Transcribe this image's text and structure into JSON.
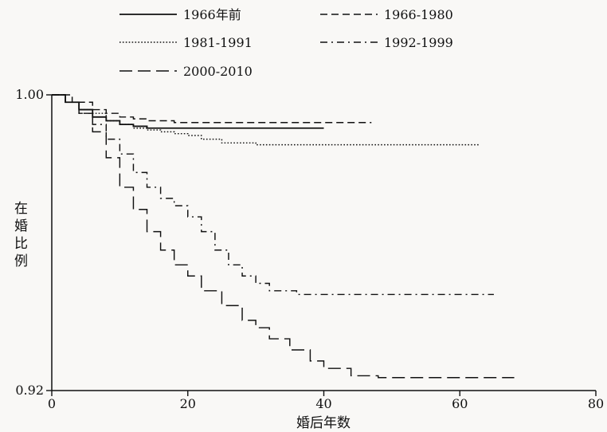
{
  "chart_data": {
    "type": "line",
    "title": "",
    "xlabel": "婚后年数",
    "ylabel": "在婚比例",
    "xlim": [
      0,
      80
    ],
    "ylim": [
      0.92,
      1.0
    ],
    "x_ticks": [
      0,
      20,
      40,
      60,
      80
    ],
    "x_tick_labels": [
      "0",
      "20",
      "40",
      "60",
      "80"
    ],
    "y_ticks": [
      0.92,
      1.0
    ],
    "y_tick_labels": [
      "0.92",
      "1.00"
    ],
    "grid": false,
    "legend_position": "top",
    "series": [
      {
        "name": "1966年前",
        "style": "solid",
        "points": [
          [
            0,
            1.0
          ],
          [
            2,
            0.998
          ],
          [
            4,
            0.996
          ],
          [
            6,
            0.994
          ],
          [
            8,
            0.993
          ],
          [
            10,
            0.992
          ],
          [
            12,
            0.9915
          ],
          [
            14,
            0.991
          ],
          [
            40,
            0.991
          ]
        ]
      },
      {
        "name": "1966-1980",
        "style": "dashed",
        "points": [
          [
            0,
            1.0
          ],
          [
            3,
            0.998
          ],
          [
            6,
            0.996
          ],
          [
            8,
            0.995
          ],
          [
            10,
            0.994
          ],
          [
            12,
            0.9935
          ],
          [
            14,
            0.993
          ],
          [
            16,
            0.993
          ],
          [
            18,
            0.9925
          ],
          [
            20,
            0.9925
          ],
          [
            30,
            0.9925
          ],
          [
            40,
            0.9925
          ],
          [
            47,
            0.9925
          ]
        ]
      },
      {
        "name": "1981-1991",
        "style": "dotted",
        "points": [
          [
            0,
            1.0
          ],
          [
            2,
            0.998
          ],
          [
            4,
            0.996
          ],
          [
            6,
            0.995
          ],
          [
            8,
            0.993
          ],
          [
            10,
            0.992
          ],
          [
            12,
            0.991
          ],
          [
            14,
            0.9905
          ],
          [
            16,
            0.99
          ],
          [
            18,
            0.9895
          ],
          [
            20,
            0.989
          ],
          [
            22,
            0.988
          ],
          [
            25,
            0.987
          ],
          [
            30,
            0.9865
          ],
          [
            40,
            0.9865
          ],
          [
            55,
            0.9865
          ],
          [
            63,
            0.9865
          ]
        ]
      },
      {
        "name": "1992-1999",
        "style": "dashdot",
        "points": [
          [
            0,
            1.0
          ],
          [
            2,
            0.998
          ],
          [
            4,
            0.995
          ],
          [
            6,
            0.992
          ],
          [
            8,
            0.988
          ],
          [
            10,
            0.984
          ],
          [
            12,
            0.979
          ],
          [
            14,
            0.975
          ],
          [
            16,
            0.972
          ],
          [
            18,
            0.97
          ],
          [
            20,
            0.967
          ],
          [
            22,
            0.963
          ],
          [
            24,
            0.958
          ],
          [
            26,
            0.954
          ],
          [
            28,
            0.951
          ],
          [
            30,
            0.949
          ],
          [
            32,
            0.947
          ],
          [
            36,
            0.946
          ],
          [
            40,
            0.946
          ],
          [
            50,
            0.946
          ],
          [
            65,
            0.946
          ]
        ]
      },
      {
        "name": "2000-2010",
        "style": "longdash",
        "points": [
          [
            0,
            1.0
          ],
          [
            2,
            0.998
          ],
          [
            4,
            0.995
          ],
          [
            6,
            0.99
          ],
          [
            8,
            0.983
          ],
          [
            10,
            0.975
          ],
          [
            12,
            0.969
          ],
          [
            14,
            0.963
          ],
          [
            16,
            0.958
          ],
          [
            18,
            0.954
          ],
          [
            20,
            0.951
          ],
          [
            22,
            0.947
          ],
          [
            25,
            0.943
          ],
          [
            28,
            0.939
          ],
          [
            30,
            0.937
          ],
          [
            32,
            0.934
          ],
          [
            35,
            0.931
          ],
          [
            38,
            0.928
          ],
          [
            40,
            0.926
          ],
          [
            44,
            0.924
          ],
          [
            48,
            0.9235
          ],
          [
            55,
            0.9235
          ],
          [
            68,
            0.9235
          ]
        ]
      }
    ],
    "colors": {
      "line": "#111111",
      "background": "#f9f8f6"
    }
  }
}
